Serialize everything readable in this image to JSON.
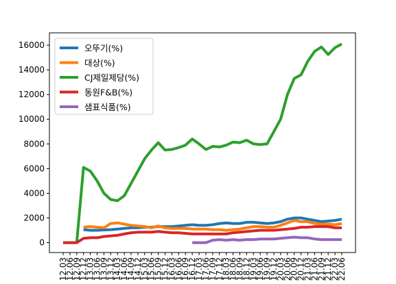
{
  "chart_data": {
    "type": "line",
    "title": "",
    "xlabel": "",
    "ylabel": "",
    "ylim": [
      -800,
      17000
    ],
    "yticks": [
      0,
      2000,
      4000,
      6000,
      8000,
      10000,
      12000,
      14000,
      16000
    ],
    "legend_position": "upper-left",
    "x": [
      "2012.03",
      "2012.06",
      "2012.09",
      "2012.12",
      "2013.03",
      "2013.06",
      "2013.09",
      "2013.12",
      "2014.03",
      "2014.06",
      "2014.09",
      "2014.12",
      "2015.03",
      "2015.06",
      "2015.09",
      "2015.12",
      "2016.03",
      "2016.06",
      "2016.09",
      "2016.12",
      "2017.03",
      "2017.06",
      "2017.09",
      "2017.12",
      "2018.03",
      "2018.06",
      "2018.09",
      "2018.12",
      "2019.03",
      "2019.06",
      "2019.09",
      "2019.12",
      "2020.03",
      "2020.06",
      "2020.09",
      "2020.12",
      "2021.03",
      "2021.06",
      "2021.09",
      "2021.12",
      "2022.03",
      "2022.06"
    ],
    "tick_labels": [
      "12.03",
      "12.06",
      "12.09",
      "12.12",
      "13.03",
      "13.06",
      "13.09",
      "13.12",
      "14.03",
      "14.06",
      "14.09",
      "14.12",
      "15.03",
      "15.06",
      "15.09",
      "15.12",
      "16.03",
      "16.06",
      "16.09",
      "16.12",
      "17.03",
      "17.06",
      "17.09",
      "17.12",
      "18.03",
      "18.06",
      "18.09",
      "18.12",
      "19.03",
      "19.06",
      "19.09",
      "19.12",
      "20.03",
      "20.06",
      "20.09",
      "20.12",
      "21.03",
      "21.06",
      "21.09",
      "21.12",
      "22.03",
      "22.06"
    ],
    "series": [
      {
        "name": "오뚜기(%)",
        "color": "#1f77b4",
        "values": [
          null,
          null,
          null,
          1050,
          1000,
          1000,
          1030,
          1050,
          1100,
          1150,
          1200,
          1200,
          1250,
          1250,
          1300,
          1300,
          1300,
          1350,
          1400,
          1450,
          1400,
          1400,
          1450,
          1550,
          1600,
          1550,
          1550,
          1650,
          1650,
          1600,
          1550,
          1600,
          1700,
          1900,
          2000,
          2000,
          1900,
          1800,
          1700,
          1750,
          1800,
          1900
        ]
      },
      {
        "name": "대상(%)",
        "color": "#ff7f0e",
        "values": [
          null,
          null,
          null,
          1250,
          1300,
          1250,
          1200,
          1550,
          1600,
          1500,
          1400,
          1350,
          1300,
          1200,
          1350,
          1200,
          1150,
          1150,
          1150,
          1100,
          1100,
          1100,
          1050,
          1050,
          1000,
          1050,
          1100,
          1200,
          1300,
          1300,
          1250,
          1250,
          1400,
          1600,
          1800,
          1700,
          1700,
          1550,
          1500,
          1500,
          1450,
          1550
        ]
      },
      {
        "name": "CJ제일제당(%)",
        "color": "#2ca02c",
        "values": [
          0,
          0,
          0,
          6100,
          5800,
          5000,
          4000,
          3500,
          3400,
          3800,
          4800,
          5800,
          6800,
          7500,
          8100,
          7500,
          7550,
          7700,
          7900,
          8400,
          8000,
          7550,
          7800,
          7750,
          7900,
          8150,
          8100,
          8300,
          8000,
          7950,
          8000,
          9000,
          10000,
          12000,
          13300,
          13600,
          14700,
          15500,
          15850,
          15250,
          15800,
          16100
        ]
      },
      {
        "name": "동원F&B(%)",
        "color": "#d62728",
        "values": [
          0,
          0,
          0,
          350,
          400,
          400,
          500,
          550,
          600,
          700,
          800,
          850,
          850,
          850,
          900,
          850,
          800,
          800,
          750,
          700,
          700,
          700,
          700,
          700,
          700,
          800,
          850,
          900,
          950,
          1000,
          1000,
          1000,
          1050,
          1100,
          1150,
          1250,
          1250,
          1300,
          1300,
          1300,
          1200,
          1200
        ]
      },
      {
        "name": "샘표식품(%)",
        "color": "#9467bd",
        "values": [
          null,
          null,
          null,
          null,
          null,
          null,
          null,
          null,
          null,
          null,
          null,
          null,
          null,
          null,
          null,
          null,
          null,
          null,
          null,
          0,
          0,
          0,
          200,
          250,
          200,
          250,
          200,
          250,
          250,
          300,
          300,
          300,
          350,
          400,
          450,
          400,
          400,
          300,
          250,
          250,
          250,
          250
        ]
      }
    ]
  }
}
